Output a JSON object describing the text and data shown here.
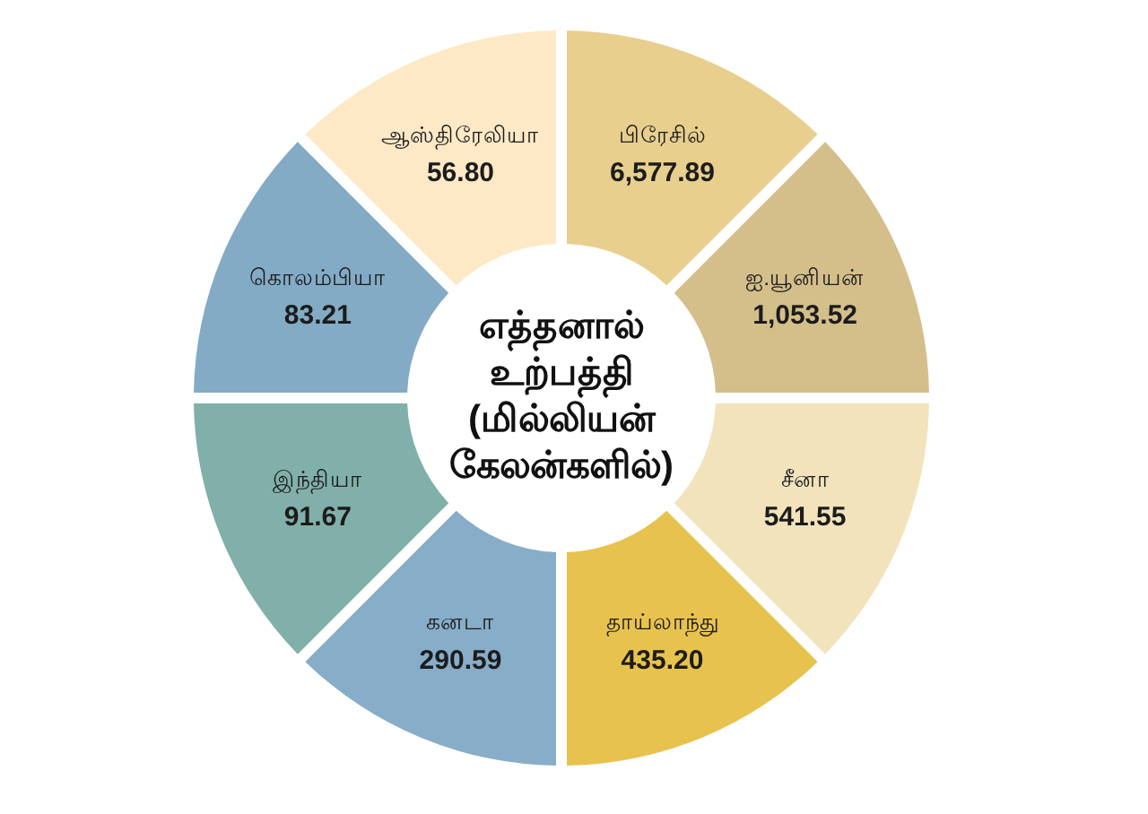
{
  "chart_data": {
    "type": "other",
    "title": "எத்தனால் உற்பத்தி (மில்லியன் கேலன்களில்)",
    "categories": [
      "பிரேசில்",
      "ஐ.யூனியன்",
      "சீனா",
      "தாய்லாந்து",
      "கனடா",
      "இந்தியா",
      "கொலம்பியா",
      "ஆஸ்திரேலியா"
    ],
    "values": [
      6577.89,
      1053.52,
      541.55,
      435.2,
      290.59,
      91.67,
      83.21,
      56.8
    ],
    "value_labels": [
      "6,577.89",
      "1,053.52",
      "541.55",
      "435.20",
      "290.59",
      "91.67",
      "83.21",
      "56.80"
    ],
    "colors": [
      "#e8cf8e",
      "#d4bf8b",
      "#f2e3bd",
      "#e7c24e",
      "#87adc8",
      "#80b0a9",
      "#83abc5",
      "#fde9c6"
    ]
  }
}
